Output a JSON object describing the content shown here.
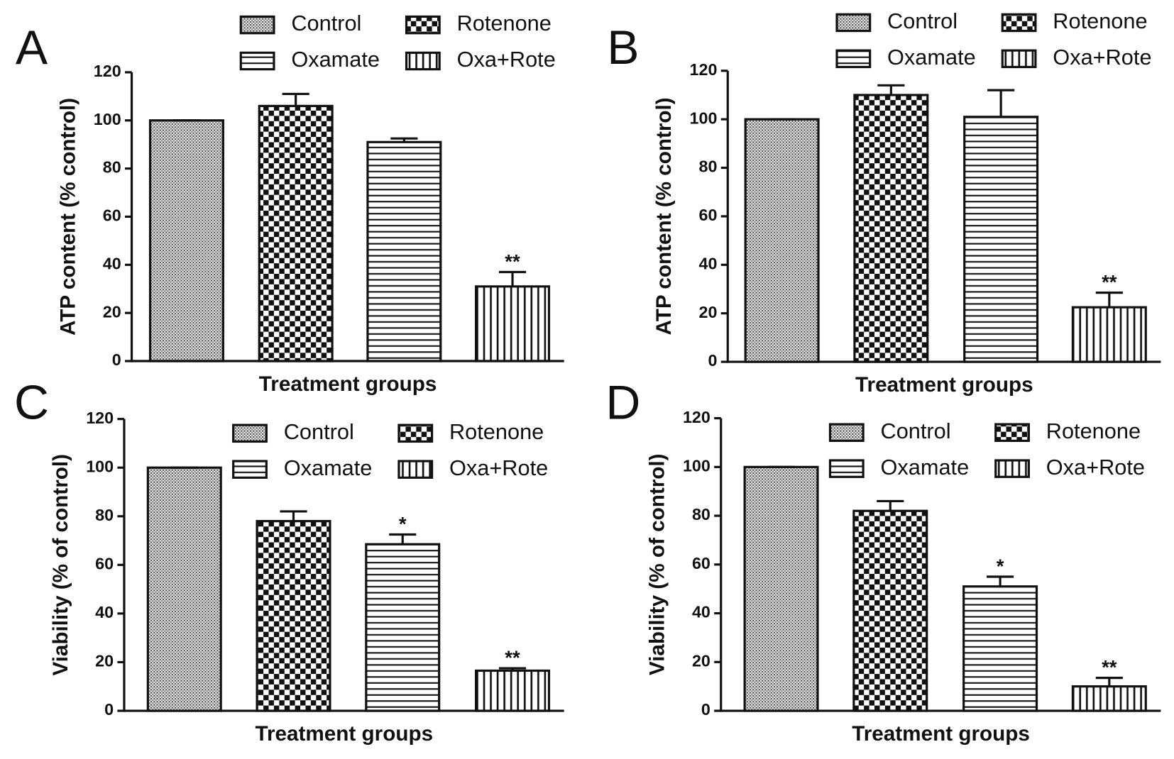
{
  "chart_data": [
    {
      "type": "bar",
      "panel": "A",
      "ylabel": "ATP content (% control)",
      "xlabel": "Treatment groups",
      "ylim": [
        0,
        120
      ],
      "yticks": [
        0,
        20,
        40,
        60,
        80,
        100,
        120
      ],
      "series": [
        {
          "name": "Control",
          "pattern": "dots",
          "values": [
            100
          ],
          "errors": [
            0
          ]
        },
        {
          "name": "Rotenone",
          "pattern": "checker",
          "values": [
            106
          ],
          "errors": [
            5
          ]
        },
        {
          "name": "Oxamate",
          "pattern": "hlines",
          "values": [
            91
          ],
          "errors": [
            1.5
          ]
        },
        {
          "name": "Oxa+Rote",
          "pattern": "vlines",
          "values": [
            31
          ],
          "errors": [
            6
          ],
          "annotation": "**"
        }
      ]
    },
    {
      "type": "bar",
      "panel": "B",
      "ylabel": "ATP content (% control)",
      "xlabel": "Treatment groups",
      "ylim": [
        0,
        120
      ],
      "yticks": [
        0,
        20,
        40,
        60,
        80,
        100,
        120
      ],
      "series": [
        {
          "name": "Control",
          "pattern": "dots",
          "values": [
            100
          ],
          "errors": [
            0
          ]
        },
        {
          "name": "Rotenone",
          "pattern": "checker",
          "values": [
            110
          ],
          "errors": [
            4
          ]
        },
        {
          "name": "Oxamate",
          "pattern": "hlines",
          "values": [
            101
          ],
          "errors": [
            11
          ]
        },
        {
          "name": "Oxa+Rote",
          "pattern": "vlines",
          "values": [
            22.5
          ],
          "errors": [
            6
          ],
          "annotation": "**"
        }
      ]
    },
    {
      "type": "bar",
      "panel": "C",
      "ylabel": "Viability (% of control)",
      "xlabel": "Treatment groups",
      "ylim": [
        0,
        120
      ],
      "yticks": [
        0,
        20,
        40,
        60,
        80,
        100,
        120
      ],
      "series": [
        {
          "name": "Control",
          "pattern": "dots",
          "values": [
            100
          ],
          "errors": [
            0
          ]
        },
        {
          "name": "Rotenone",
          "pattern": "checker",
          "values": [
            78
          ],
          "errors": [
            4
          ]
        },
        {
          "name": "Oxamate",
          "pattern": "hlines",
          "values": [
            68.5
          ],
          "errors": [
            4
          ],
          "annotation": "*"
        },
        {
          "name": "Oxa+Rote",
          "pattern": "vlines",
          "values": [
            16.5
          ],
          "errors": [
            1
          ],
          "annotation": "**"
        }
      ]
    },
    {
      "type": "bar",
      "panel": "D",
      "ylabel": "Viability (% of control)",
      "xlabel": "Treatment groups",
      "ylim": [
        0,
        120
      ],
      "yticks": [
        0,
        20,
        40,
        60,
        80,
        100,
        120
      ],
      "series": [
        {
          "name": "Control",
          "pattern": "dots",
          "values": [
            100
          ],
          "errors": [
            0
          ]
        },
        {
          "name": "Rotenone",
          "pattern": "checker",
          "values": [
            82
          ],
          "errors": [
            4
          ]
        },
        {
          "name": "Oxamate",
          "pattern": "hlines",
          "values": [
            51
          ],
          "errors": [
            4
          ],
          "annotation": "*"
        },
        {
          "name": "Oxa+Rote",
          "pattern": "vlines",
          "values": [
            10
          ],
          "errors": [
            3.5
          ],
          "annotation": "**"
        }
      ]
    }
  ]
}
